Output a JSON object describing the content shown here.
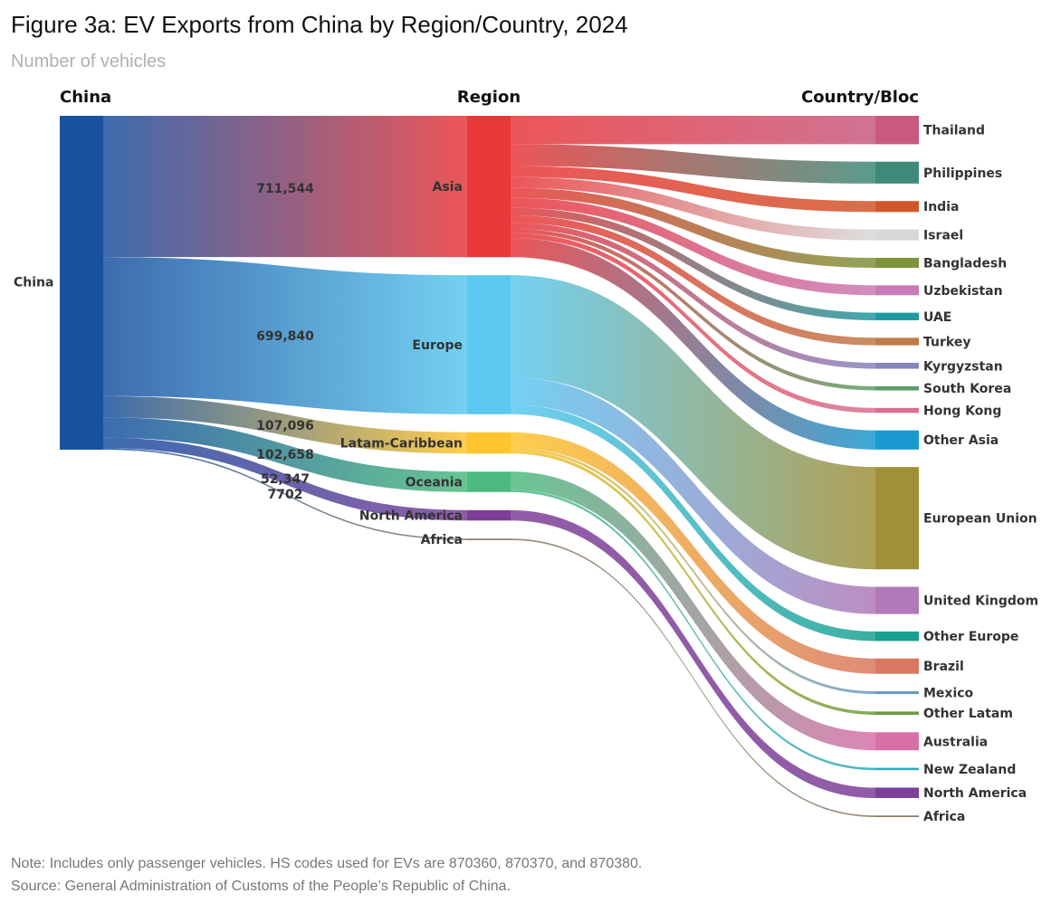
{
  "title": "Figure 3a: EV Exports from China by Region/Country, 2024",
  "subtitle": "Number of vehicles",
  "note": "Note: Includes only passenger vehicles. HS codes used for EVs are 870360, 870370, and 870380.",
  "source": "Source: General Administration of Customs of the People’s Republic of China.",
  "chart_data": {
    "type": "sankey",
    "column_headers": [
      "China",
      "Region",
      "Country/Bloc"
    ],
    "source_node": {
      "name": "China",
      "color": "#1a52a0"
    },
    "regions": [
      {
        "name": "Asia",
        "value": 711544,
        "value_label": "711,544",
        "color": "#e8383a"
      },
      {
        "name": "Europe",
        "value": 699840,
        "value_label": "699,840",
        "color": "#5bc8ef"
      },
      {
        "name": "Latam-Caribbean",
        "value": 107096,
        "value_label": "107,096",
        "color": "#fec52e"
      },
      {
        "name": "Oceania",
        "value": 102658,
        "value_label": "102,658",
        "color": "#4dbb7f"
      },
      {
        "name": "North America",
        "value": 52347,
        "value_label": "52,347",
        "color": "#7d3f98"
      },
      {
        "name": "Africa",
        "value": 7702,
        "value_label": "7702",
        "color": "#8a7a65"
      }
    ],
    "countries": [
      {
        "name": "Thailand",
        "region": "Asia",
        "value": 143000,
        "color": "#c85a80"
      },
      {
        "name": "Philippines",
        "region": "Asia",
        "value": 110000,
        "color": "#3e8a78"
      },
      {
        "name": "India",
        "region": "Asia",
        "value": 55000,
        "color": "#d2562a"
      },
      {
        "name": "Israel",
        "region": "Asia",
        "value": 55000,
        "color": "#d8d8d8"
      },
      {
        "name": "Bangladesh",
        "region": "Asia",
        "value": 50000,
        "color": "#7d9438"
      },
      {
        "name": "Uzbekistan",
        "region": "Asia",
        "value": 50000,
        "color": "#c97ab8"
      },
      {
        "name": "UAE",
        "region": "Asia",
        "value": 38000,
        "color": "#1e9aa0"
      },
      {
        "name": "Turkey",
        "region": "Asia",
        "value": 38000,
        "color": "#c07a48"
      },
      {
        "name": "Kyrgyzstan",
        "region": "Asia",
        "value": 30000,
        "color": "#8585c0"
      },
      {
        "name": "South Korea",
        "region": "Asia",
        "value": 21000,
        "color": "#5a9e6a"
      },
      {
        "name": "Hong Kong",
        "region": "Asia",
        "value": 25000,
        "color": "#d87090"
      },
      {
        "name": "Other Asia",
        "region": "Asia",
        "value": 96544,
        "color": "#1a9ad0"
      },
      {
        "name": "European Union",
        "region": "Europe",
        "value": 515000,
        "color": "#a09038"
      },
      {
        "name": "United Kingdom",
        "region": "Europe",
        "value": 137000,
        "color": "#b07ab8"
      },
      {
        "name": "Other Europe",
        "region": "Europe",
        "value": 47840,
        "color": "#1aa090"
      },
      {
        "name": "Brazil",
        "region": "Latam-Caribbean",
        "value": 77000,
        "color": "#d87860"
      },
      {
        "name": "Mexico",
        "region": "Latam-Caribbean",
        "value": 14000,
        "color": "#6a9ac8"
      },
      {
        "name": "Other Latam",
        "region": "Latam-Caribbean",
        "value": 16096,
        "color": "#6a9a40"
      },
      {
        "name": "Australia",
        "region": "Oceania",
        "value": 91000,
        "color": "#d870a8"
      },
      {
        "name": "New Zealand",
        "region": "Oceania",
        "value": 11658,
        "color": "#30a8c0"
      },
      {
        "name": "North America",
        "region": "North America",
        "value": 52347,
        "color": "#7d3f98"
      },
      {
        "name": "Africa",
        "region": "Africa",
        "value": 7702,
        "color": "#8a7a65"
      }
    ]
  }
}
